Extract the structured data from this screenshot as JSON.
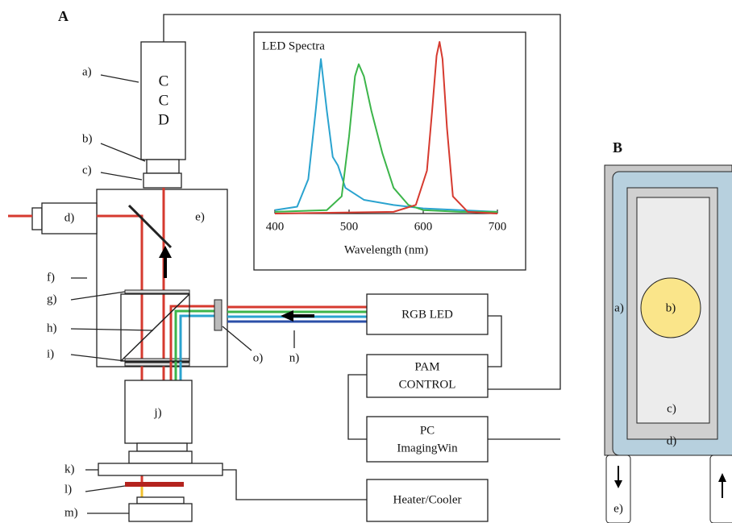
{
  "panel_a": {
    "label": "A",
    "ccd": [
      "C",
      "C",
      "D"
    ],
    "markers": [
      "a)",
      "b)",
      "c)",
      "d)",
      "e)",
      "f)",
      "g)",
      "h)",
      "i)",
      "j)",
      "k)",
      "l)",
      "m)",
      "n)",
      "o)"
    ],
    "rgb_led": [
      "RGB LED"
    ],
    "pam_control": [
      "PAM",
      "CONTROL"
    ],
    "pc": [
      "PC",
      "ImagingWin"
    ],
    "heater": [
      "Heater/Cooler"
    ],
    "spectra": {
      "type": "line",
      "title": "LED Spectra",
      "xlabel": "Wavelength (nm)",
      "xlim": [
        400,
        700
      ],
      "xticks": [
        400,
        500,
        600,
        700
      ],
      "ylim": [
        0,
        1
      ],
      "series": [
        {
          "color": "#2aa3cf",
          "x": [
            400,
            430,
            445,
            455,
            462,
            470,
            478,
            485,
            495,
            520,
            560,
            600,
            650,
            700
          ],
          "values": [
            0.02,
            0.04,
            0.2,
            0.6,
            0.9,
            0.6,
            0.33,
            0.28,
            0.15,
            0.08,
            0.05,
            0.03,
            0.02,
            0.01
          ]
        },
        {
          "color": "#3cb54a",
          "x": [
            400,
            470,
            490,
            500,
            508,
            513,
            520,
            530,
            545,
            560,
            580,
            600,
            650,
            700
          ],
          "values": [
            0.01,
            0.02,
            0.1,
            0.45,
            0.8,
            0.87,
            0.8,
            0.6,
            0.35,
            0.15,
            0.05,
            0.02,
            0.01,
            0.01
          ]
        },
        {
          "color": "#d63a2f",
          "x": [
            400,
            560,
            590,
            605,
            612,
            618,
            622,
            626,
            632,
            640,
            660,
            700
          ],
          "values": [
            0,
            0.01,
            0.05,
            0.25,
            0.6,
            0.92,
            1.0,
            0.9,
            0.5,
            0.1,
            0.01,
            0
          ]
        }
      ]
    }
  },
  "panel_b": {
    "label": "B",
    "markers": [
      "a)",
      "b)",
      "c)",
      "d)",
      "e)"
    ]
  }
}
